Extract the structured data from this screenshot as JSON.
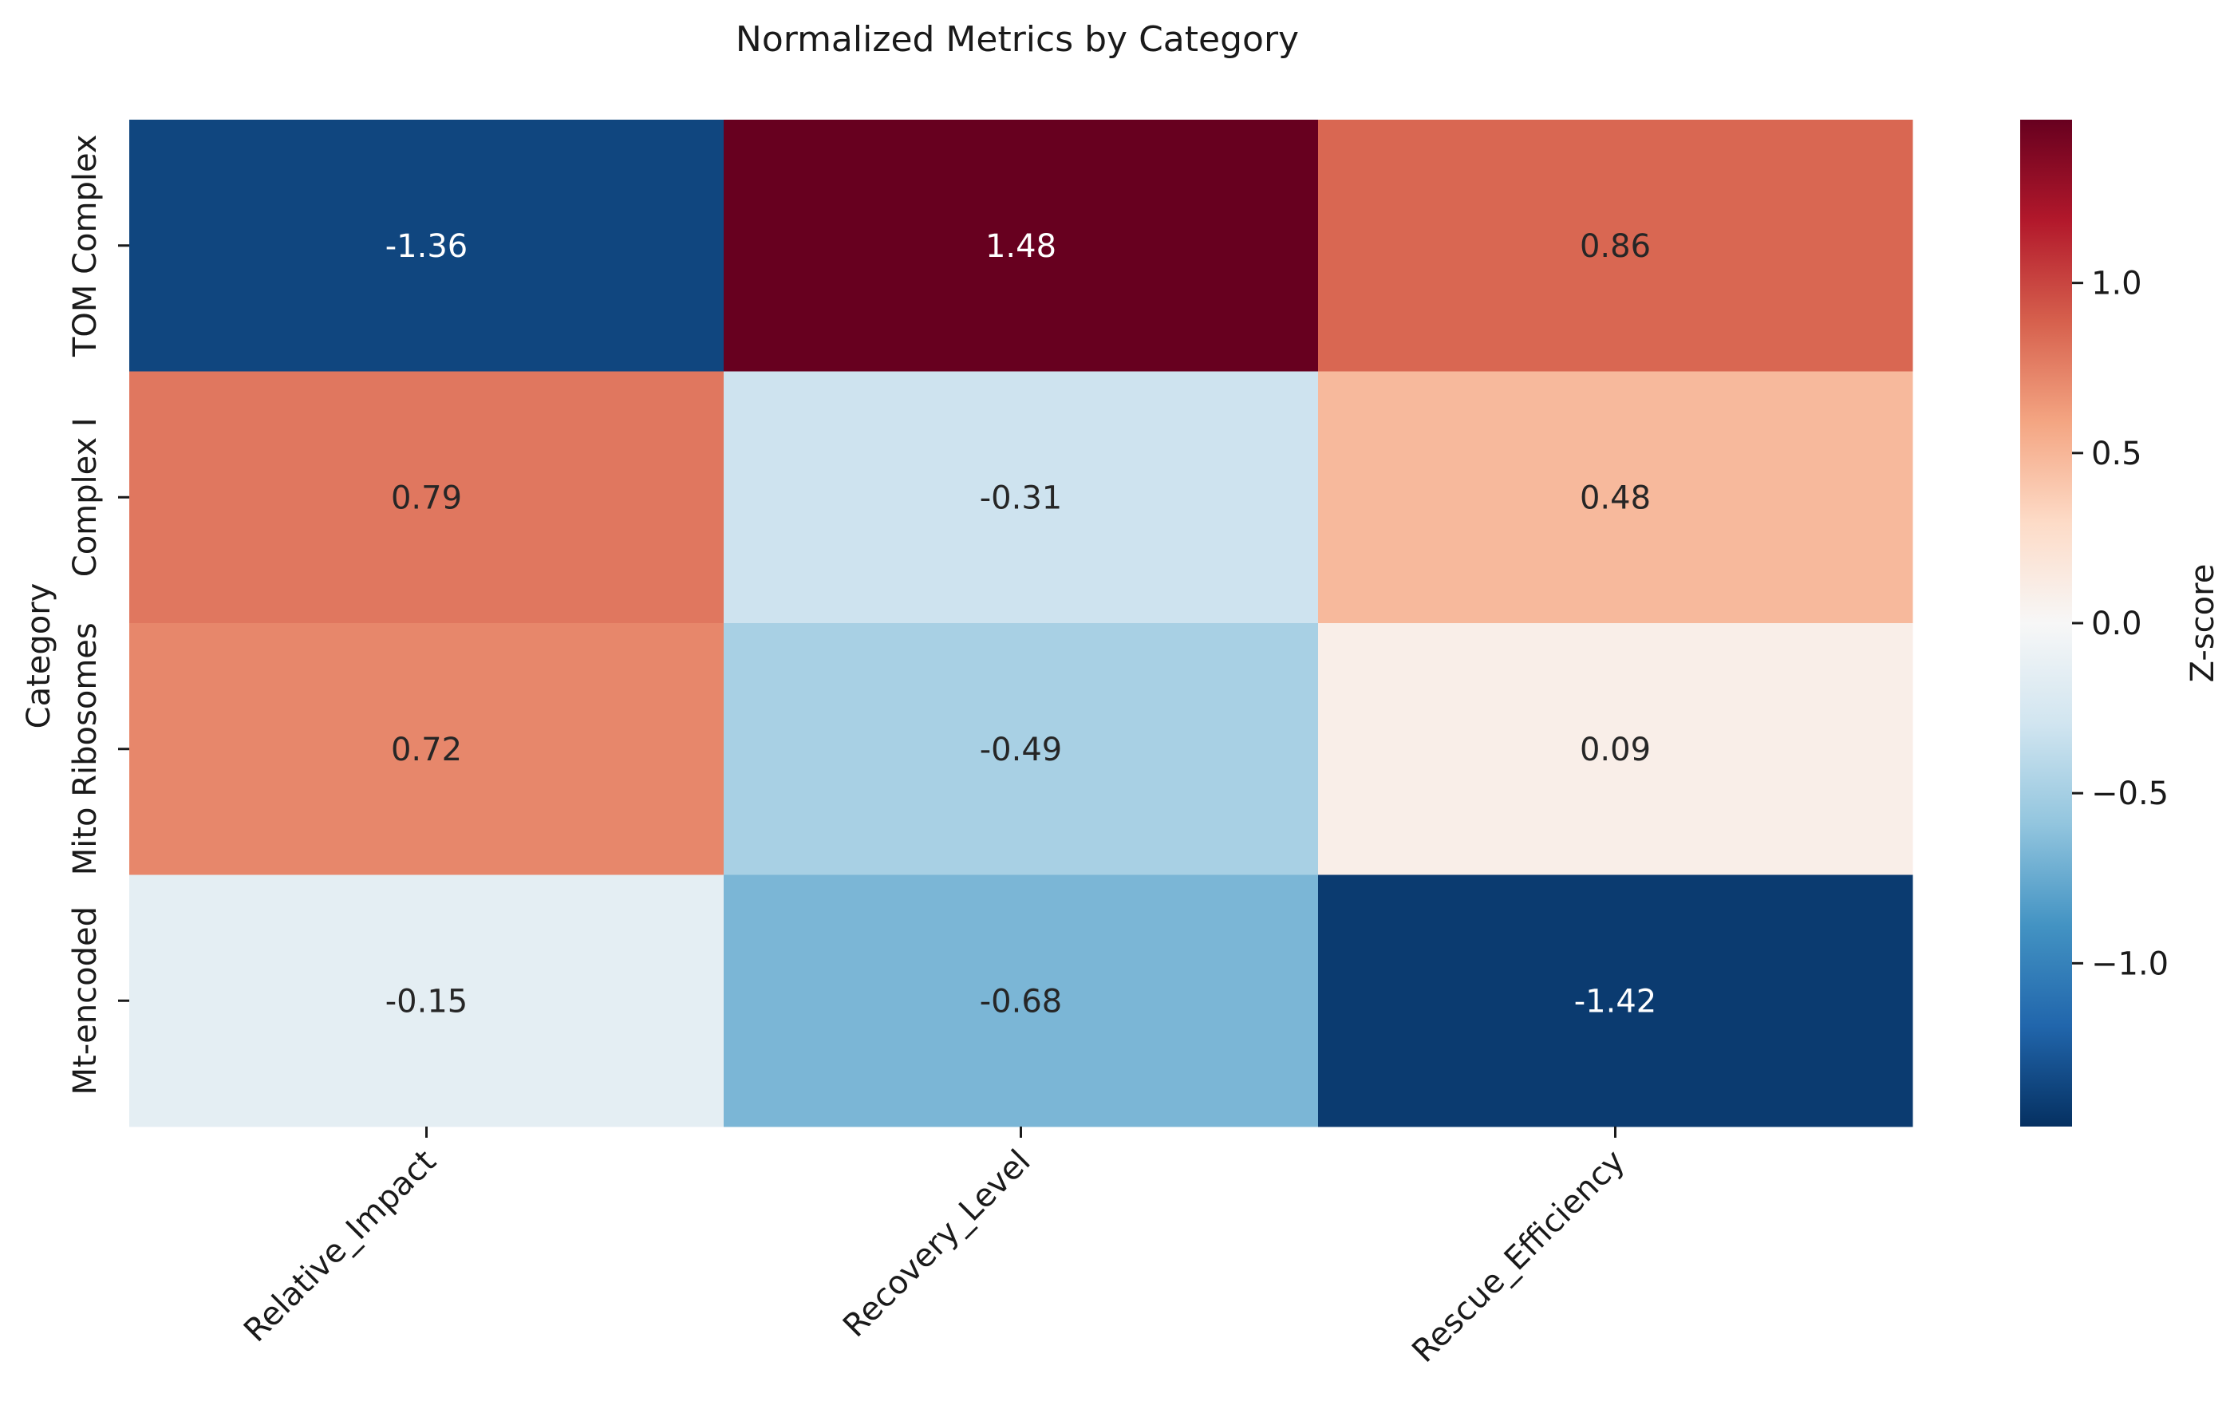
{
  "chart_data": {
    "type": "heatmap",
    "title": "Normalized Metrics by Category",
    "xlabel": "",
    "ylabel": "Category",
    "columns": [
      "Relative_Impact",
      "Recovery_Level",
      "Rescue_Efficiency"
    ],
    "rows": [
      "TOM Complex",
      "Complex I",
      "Mito Ribosomes",
      "Mt-encoded"
    ],
    "values": [
      [
        -1.36,
        1.48,
        0.86
      ],
      [
        0.79,
        -0.31,
        0.48
      ],
      [
        0.72,
        -0.49,
        0.09
      ],
      [
        -0.15,
        -0.68,
        -1.42
      ]
    ],
    "value_labels": [
      [
        "-1.36",
        "1.48",
        "0.86"
      ],
      [
        "0.79",
        "-0.31",
        "0.48"
      ],
      [
        "0.72",
        "-0.49",
        "0.09"
      ],
      [
        "-0.15",
        "-0.68",
        "-1.42"
      ]
    ],
    "colormap": "RdBu_r",
    "vmin": -1.48,
    "vmax": 1.48,
    "colorbar": {
      "label": "Z-score",
      "ticks": [
        1.0,
        0.5,
        0.0,
        -0.5,
        -1.0
      ],
      "tick_labels": [
        "1.0",
        "0.5",
        "0.0",
        "−0.5",
        "−1.0"
      ]
    },
    "grid": false,
    "legend": "none"
  }
}
